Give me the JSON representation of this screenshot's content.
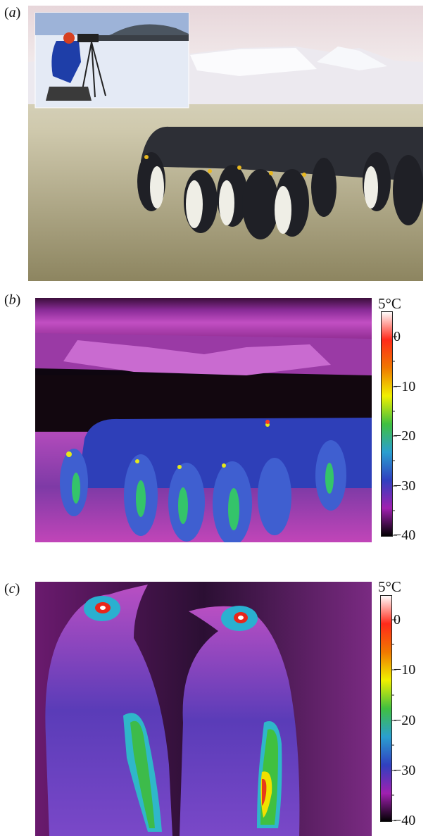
{
  "panels": [
    {
      "id": "a",
      "label": "a"
    },
    {
      "id": "b",
      "label": "b",
      "colorbar": {
        "max_label": "5°C",
        "ticks": [
          "0",
          "−10",
          "−20",
          "−30",
          "−40"
        ]
      }
    },
    {
      "id": "c",
      "label": "c",
      "colorbar": {
        "max_label": "5°C",
        "ticks": [
          "0",
          "−10",
          "−20",
          "−30",
          "−40"
        ]
      }
    }
  ],
  "colorbar_gradient": [
    "#ffffff",
    "#ff2a1a",
    "#f07800",
    "#f0f000",
    "#40c040",
    "#2a9fd0",
    "#3040c0",
    "#a020b0",
    "#000000"
  ]
}
